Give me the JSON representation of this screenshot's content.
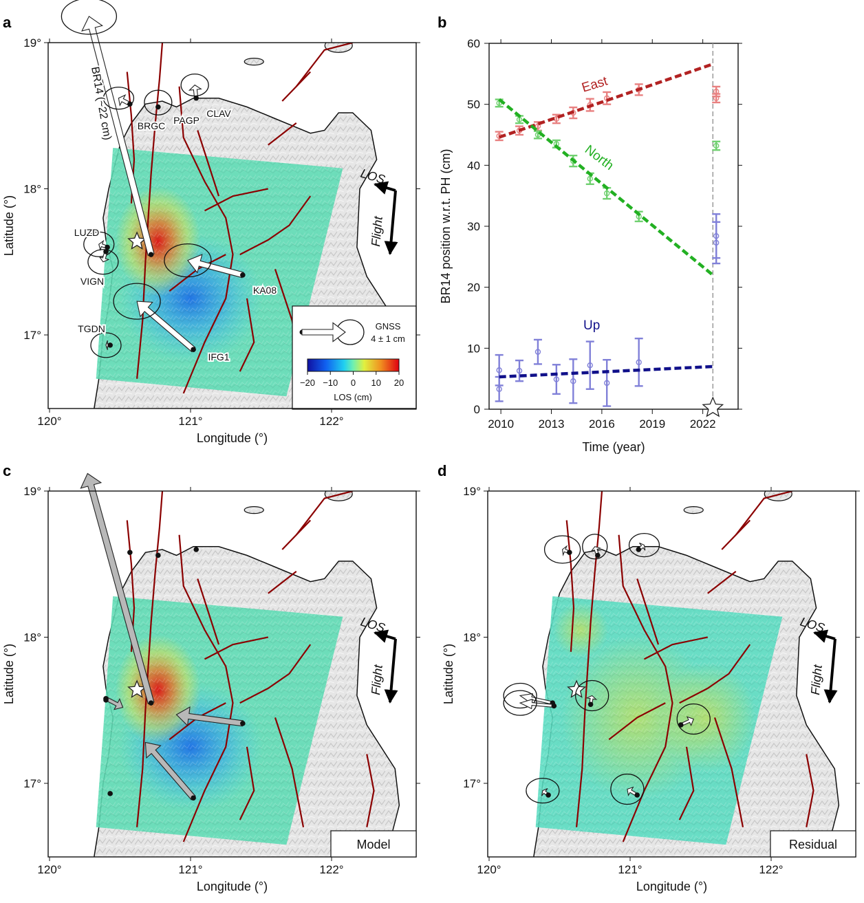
{
  "panels": {
    "a": {
      "letter": "a",
      "xlabel": "Longitude (°)",
      "ylabel": "Latitude (°)",
      "xticks": [
        "120°",
        "121°",
        "122°"
      ],
      "yticks": [
        "17°",
        "18°",
        "19°"
      ],
      "los_label": "LOS",
      "flight_label": "Flight",
      "big_vector_label": "BR14 (~22 cm)",
      "stations": [
        {
          "name": "BRGC",
          "lon": 120.57,
          "lat": 18.58
        },
        {
          "name": "PAGP",
          "lon": 120.77,
          "lat": 18.56
        },
        {
          "name": "CLAV",
          "lon": 121.04,
          "lat": 18.62
        },
        {
          "name": "LUZD",
          "lon": 120.4,
          "lat": 17.6
        },
        {
          "name": "VIGN",
          "lon": 120.39,
          "lat": 17.57
        },
        {
          "name": "KA08",
          "lon": 121.37,
          "lat": 17.41
        },
        {
          "name": "IFG1",
          "lon": 121.02,
          "lat": 16.9
        },
        {
          "name": "TGDN",
          "lon": 120.43,
          "lat": 16.93
        }
      ],
      "legend": {
        "gnss_label": "GNSS",
        "gnss_scale": "4 ± 1 cm",
        "colorbar_ticks": [
          "−20",
          "−10",
          "0",
          "10",
          "20"
        ],
        "colorbar_label": "LOS (cm)"
      }
    },
    "b": {
      "letter": "b",
      "xlabel": "Time (year)",
      "ylabel": "BR14 position w.r.t. PH (cm)"
    },
    "c": {
      "letter": "c",
      "xlabel": "Longitude (°)",
      "ylabel": "Latitude (°)",
      "xticks": [
        "120°",
        "121°",
        "122°"
      ],
      "yticks": [
        "17°",
        "18°",
        "19°"
      ],
      "los_label": "LOS",
      "flight_label": "Flight",
      "box_label": "Model"
    },
    "d": {
      "letter": "d",
      "xlabel": "Longitude (°)",
      "ylabel": "Latitude (°)",
      "xticks": [
        "120°",
        "121°",
        "122°"
      ],
      "yticks": [
        "17°",
        "18°",
        "19°"
      ],
      "los_label": "LOS",
      "flight_label": "Flight",
      "box_label": "Residual"
    }
  },
  "colors": {
    "east": "#b22222",
    "east_points": "#e88080",
    "north": "#22b022",
    "north_points": "#70d070",
    "up": "#10108a",
    "up_points": "#8080d8",
    "fault": "#8b0000"
  },
  "chart_data": {
    "type": "scatter",
    "xlim": [
      2009.3,
      2024.1
    ],
    "ylim": [
      0,
      60
    ],
    "xticks": [
      2010,
      2013,
      2016,
      2019,
      2022
    ],
    "yticks": [
      0,
      10,
      20,
      30,
      40,
      50,
      60
    ],
    "event_marker_year": 2022.6,
    "series": [
      {
        "name": "East",
        "points": [
          [
            2009.9,
            44.8,
            0.7
          ],
          [
            2011.1,
            45.7,
            0.7
          ],
          [
            2012.2,
            46.4,
            0.7
          ],
          [
            2013.3,
            47.6,
            0.7
          ],
          [
            2014.3,
            48.6,
            0.9
          ],
          [
            2015.3,
            49.9,
            1.0
          ],
          [
            2016.3,
            51.0,
            1.0
          ],
          [
            2018.2,
            52.4,
            0.9
          ],
          [
            2022.8,
            52.1,
            0.8
          ],
          [
            2022.8,
            51.0,
            0.7
          ]
        ],
        "trend": [
          [
            2009.9,
            44.6
          ],
          [
            2022.6,
            56.6
          ]
        ]
      },
      {
        "name": "North",
        "points": [
          [
            2009.9,
            50.2,
            0.6
          ],
          [
            2011.1,
            47.5,
            0.6
          ],
          [
            2012.2,
            45.0,
            0.6
          ],
          [
            2013.3,
            43.5,
            0.6
          ],
          [
            2014.3,
            40.7,
            0.9
          ],
          [
            2015.3,
            37.8,
            0.9
          ],
          [
            2016.3,
            35.4,
            0.9
          ],
          [
            2018.2,
            31.6,
            0.8
          ],
          [
            2022.8,
            43.2,
            0.7
          ]
        ],
        "trend": [
          [
            2009.9,
            50.8
          ],
          [
            2022.6,
            22.0
          ]
        ]
      },
      {
        "name": "Up",
        "points": [
          [
            2009.9,
            6.4,
            2.5
          ],
          [
            2009.9,
            3.3,
            2.0
          ],
          [
            2011.1,
            6.3,
            1.7
          ],
          [
            2012.2,
            9.4,
            2.0
          ],
          [
            2013.3,
            4.9,
            2.4
          ],
          [
            2014.3,
            4.6,
            3.6
          ],
          [
            2015.3,
            7.2,
            3.9
          ],
          [
            2016.3,
            4.3,
            3.8
          ],
          [
            2018.2,
            7.7,
            3.9
          ],
          [
            2022.8,
            28.4,
            3.6
          ],
          [
            2022.8,
            27.3,
            3.4
          ]
        ],
        "trend": [
          [
            2009.9,
            5.3
          ],
          [
            2022.6,
            7.0
          ]
        ]
      }
    ]
  }
}
